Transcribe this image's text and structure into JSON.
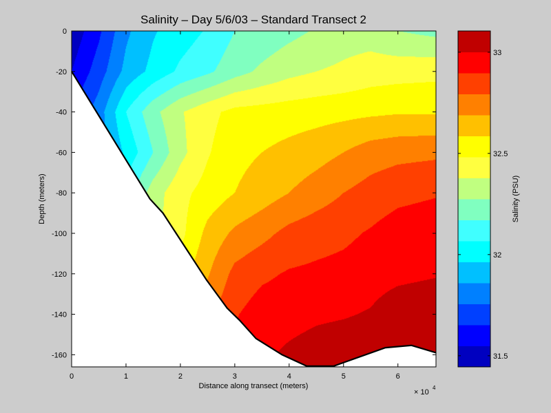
{
  "chart_data": {
    "type": "heatmap",
    "subtype": "filled-contour",
    "title": "Salinity – Day 5/6/03 – Standard Transect 2",
    "xlabel": "Distance along transect (meters)",
    "ylabel": "Depth (meters)",
    "x_exponent_base": "× 10",
    "x_exponent_power": "4",
    "xlim": [
      0,
      6.7
    ],
    "ylim": [
      -166,
      0
    ],
    "xticks": [
      0,
      1,
      2,
      3,
      4,
      5,
      6
    ],
    "xtick_labels": [
      "0",
      "1",
      "2",
      "3",
      "4",
      "5",
      "6"
    ],
    "yticks": [
      0,
      -20,
      -40,
      -60,
      -80,
      -100,
      -120,
      -140,
      -160
    ],
    "ytick_labels": [
      "0",
      "-20",
      "-40",
      "-60",
      "-80",
      "-100",
      "-120",
      "-140",
      "-160"
    ],
    "grid": false,
    "colorbar": {
      "label": "Salinity (PSU)",
      "range": [
        31.445,
        33.105
      ],
      "ticks": [
        31.5,
        32,
        32.5,
        33
      ],
      "tick_labels": [
        "31.5",
        "32",
        "32.5",
        "33"
      ],
      "level_start": 31.45,
      "level_step": 0.1,
      "colors": [
        "#0000c0",
        "#0000ff",
        "#0040ff",
        "#0080ff",
        "#00c0ff",
        "#00ffff",
        "#40ffff",
        "#80ffc0",
        "#c0ff80",
        "#ffff40",
        "#ffff00",
        "#ffc000",
        "#ff8000",
        "#ff4000",
        "#ff0000",
        "#c00000"
      ]
    },
    "grid_x_1e4m": [
      0,
      0.5,
      1,
      1.5,
      2,
      2.5,
      3,
      3.5,
      4,
      4.5,
      5,
      5.5,
      6,
      6.7
    ],
    "grid_depth_m": [
      0,
      -20,
      -40,
      -60,
      -80,
      -100,
      -120,
      -140,
      -160,
      -166
    ],
    "salinity_psu": [
      [
        31.48,
        31.63,
        31.83,
        31.94,
        32.0,
        32.06,
        32.15,
        32.18,
        32.22,
        32.26,
        32.3,
        32.3,
        32.25,
        32.22
      ],
      [
        31.55,
        31.7,
        31.88,
        31.98,
        32.07,
        32.13,
        32.21,
        32.27,
        32.32,
        32.35,
        32.37,
        32.4,
        32.41,
        32.42
      ],
      [
        31.65,
        31.8,
        32.05,
        32.22,
        32.34,
        32.42,
        32.48,
        32.49,
        32.5,
        32.51,
        32.52,
        32.53,
        32.54,
        32.54
      ],
      [
        31.7,
        31.8,
        31.97,
        32.15,
        32.32,
        32.44,
        32.52,
        32.55,
        32.58,
        32.61,
        32.65,
        32.7,
        32.72,
        32.73
      ],
      [
        31.8,
        31.95,
        32.1,
        32.3,
        32.42,
        32.49,
        32.55,
        32.6,
        32.65,
        32.7,
        32.75,
        32.79,
        32.82,
        32.84
      ],
      [
        31.9,
        32.05,
        32.2,
        32.32,
        32.42,
        32.58,
        32.67,
        32.72,
        32.78,
        32.81,
        32.83,
        32.86,
        32.9,
        32.92
      ],
      [
        32.0,
        32.1,
        32.25,
        32.38,
        32.5,
        32.64,
        32.78,
        32.83,
        32.86,
        32.87,
        32.88,
        32.9,
        32.92,
        32.94
      ],
      [
        32.1,
        32.2,
        32.35,
        32.5,
        32.62,
        32.72,
        32.84,
        32.9,
        32.91,
        32.93,
        32.94,
        32.96,
        33.02,
        33.04
      ],
      [
        32.2,
        32.3,
        32.45,
        32.6,
        32.72,
        32.8,
        32.88,
        32.93,
        32.97,
        33.0,
        33.02,
        33.03,
        33.04,
        33.05
      ],
      [
        32.21,
        32.31,
        32.46,
        32.61,
        32.73,
        32.81,
        32.89,
        32.94,
        32.98,
        33.01,
        33.03,
        33.04,
        33.05,
        33.06
      ]
    ],
    "bathymetry": {
      "x_1e4m": [
        0,
        1.44,
        1.68,
        2.48,
        2.86,
        3.09,
        3.39,
        3.87,
        4.32,
        4.82,
        5.77,
        6.25,
        6.7
      ],
      "depth_m": [
        -20,
        -83,
        -90,
        -123,
        -137,
        -143,
        -152,
        -160,
        -165.6,
        -165.6,
        -156.5,
        -155.4,
        -159
      ]
    }
  }
}
